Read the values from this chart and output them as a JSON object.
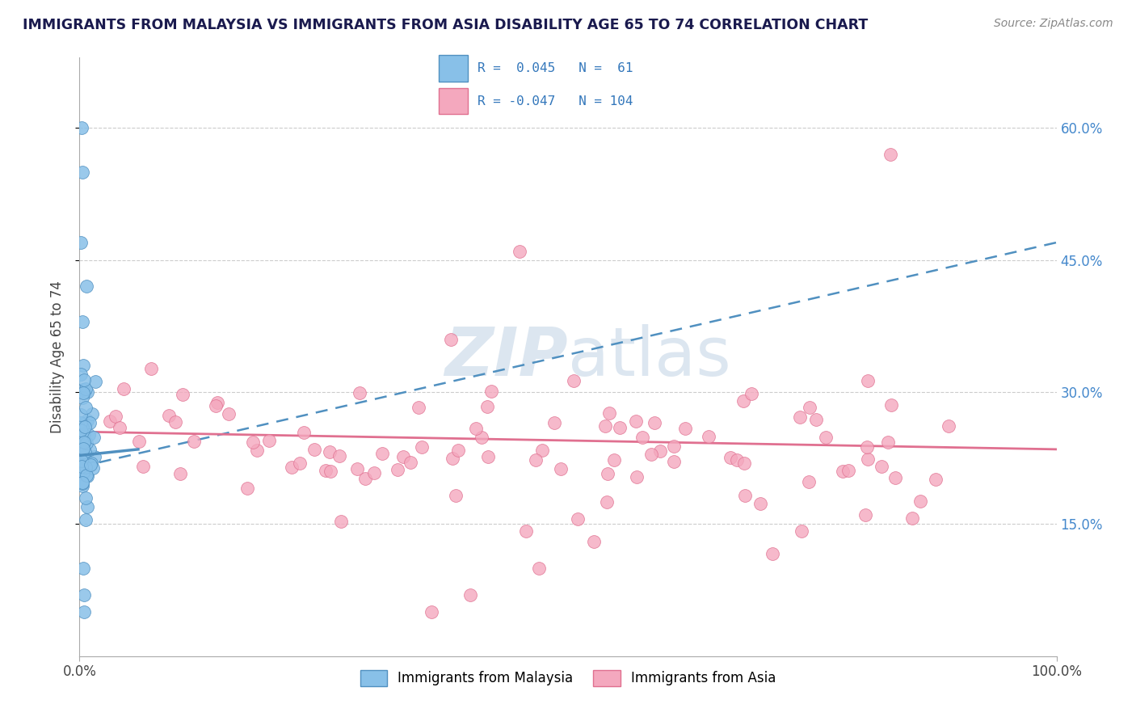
{
  "title": "IMMIGRANTS FROM MALAYSIA VS IMMIGRANTS FROM ASIA DISABILITY AGE 65 TO 74 CORRELATION CHART",
  "source": "Source: ZipAtlas.com",
  "ylabel": "Disability Age 65 to 74",
  "right_yticklabels": [
    "15.0%",
    "30.0%",
    "45.0%",
    "60.0%"
  ],
  "right_yticks": [
    0.15,
    0.3,
    0.45,
    0.6
  ],
  "xlim": [
    0.0,
    1.0
  ],
  "ylim": [
    0.0,
    0.68
  ],
  "malaysia_color": "#88c0e8",
  "asia_color": "#f4a8be",
  "malaysia_edge": "#5090c0",
  "asia_edge": "#e07090",
  "trend_malaysia_color": "#5090c0",
  "trend_asia_color": "#e07090",
  "background_color": "#ffffff",
  "title_color": "#1a1a4e",
  "source_color": "#888888",
  "watermark_color": "#dce6f0",
  "grid_color": "#cccccc"
}
